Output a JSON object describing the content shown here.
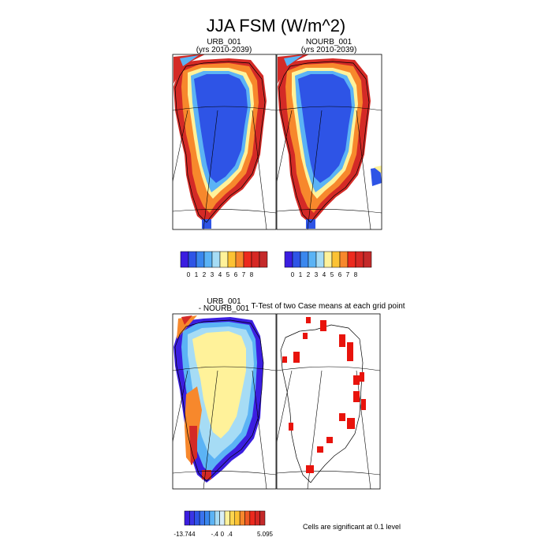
{
  "title": "JJA FSM (W/m^2)",
  "panels": [
    {
      "id": "urb",
      "title_line1": "URB_001",
      "title_line2": "(yrs 2010-2039)"
    },
    {
      "id": "nourb",
      "title_line1": "NOURB_001",
      "title_line2": "(yrs 2010-2039)"
    },
    {
      "id": "diff",
      "title_line1": "URB_001",
      "title_line2": "- NOURB_001"
    },
    {
      "id": "ttest",
      "title_line1": "T-Test of two Case means at each grid point",
      "title_line2": ""
    }
  ],
  "colorbars": {
    "top_labels": [
      "0",
      "1",
      "2",
      "3",
      "4",
      "5",
      "6",
      "7",
      "8"
    ],
    "top_colors": [
      "#3b1ee0",
      "#2e54e6",
      "#3a87ee",
      "#5bb3f5",
      "#a6dcf5",
      "#fff29a",
      "#fcc233",
      "#f7882c",
      "#ec2a1e",
      "#d62824",
      "#c42a2a"
    ],
    "diff_labels": [
      "-13.744",
      "-.4",
      "0",
      ".4",
      "5.095"
    ],
    "diff_colors": [
      "#3b1ee0",
      "#3a35e6",
      "#2e54e6",
      "#3a72ee",
      "#3a87ee",
      "#5bb3f5",
      "#a6dcf5",
      "#d8eef8",
      "#fff29a",
      "#fdd54f",
      "#fcc233",
      "#f7882c",
      "#f05a24",
      "#ec2a1e",
      "#d62824",
      "#c42a2a"
    ]
  },
  "footnote": "Cells are significant at 0.1 level",
  "chart_data": [
    {
      "type": "heatmap",
      "title": "URB_001",
      "subtitle": "(yrs 2010-2039)",
      "colorbar_ticks": [
        0,
        1,
        2,
        3,
        4,
        5,
        6,
        7,
        8
      ]
    },
    {
      "type": "heatmap",
      "title": "NOURB_001",
      "subtitle": "(yrs 2010-2039)",
      "colorbar_ticks": [
        0,
        1,
        2,
        3,
        4,
        5,
        6,
        7,
        8
      ]
    },
    {
      "type": "heatmap",
      "title": "URB_001 - NOURB_001",
      "colorbar_ticks": [
        -13.744,
        -0.4,
        0,
        0.4,
        5.095
      ]
    },
    {
      "type": "heatmap",
      "title": "T-Test of two Case means at each grid point",
      "annotation": "Cells are significant at 0.1 level"
    }
  ]
}
